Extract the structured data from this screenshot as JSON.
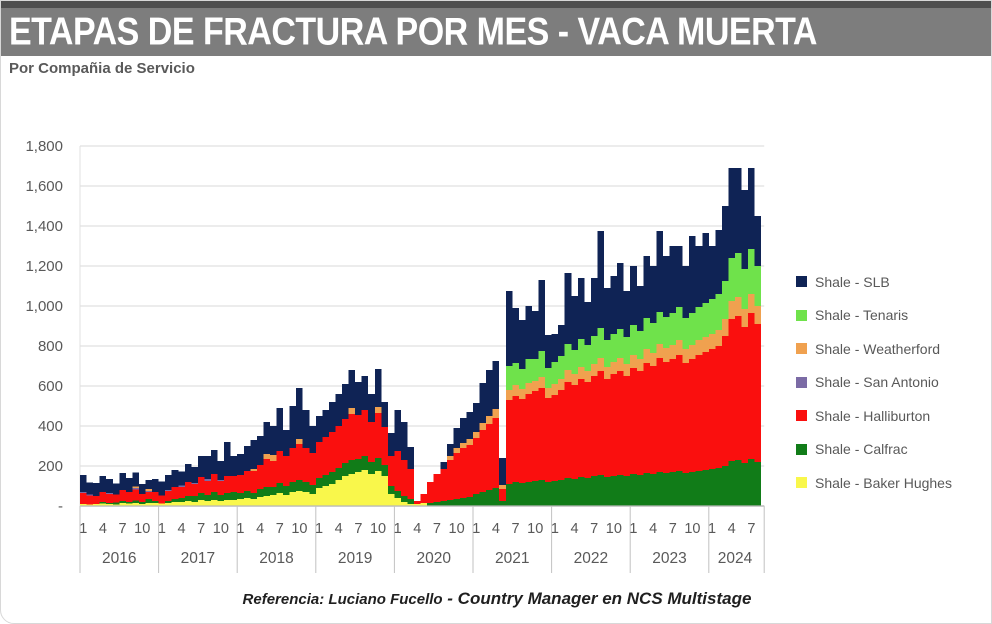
{
  "header": {
    "title": "ETAPAS DE FRACTURA POR MES -  VACA MUERTA",
    "subtitle": "Por Compañia de Servicio"
  },
  "footer": {
    "prefix": "Referencia:  Luciano Fucello",
    "suffix": " - Country Manager en NCS Multistage"
  },
  "chart_data": {
    "type": "bar",
    "stacked": true,
    "title": "ETAPAS DE FRACTURA POR MES - VACA MUERTA",
    "subtitle": "Por Compañia de Servicio",
    "ylabel": "",
    "xlabel": "",
    "ylim": [
      0,
      1800
    ],
    "ytick_step": 200,
    "grid": true,
    "legend_position": "right",
    "x": {
      "start": "2016-01",
      "end": "2024-08",
      "years": [
        2016,
        2017,
        2018,
        2019,
        2020,
        2021,
        2022,
        2023,
        2024
      ],
      "month_ticks": [
        1,
        4,
        7,
        10
      ],
      "months_in_final_year": 8
    },
    "series": [
      {
        "name": "Shale - Baker Hughes",
        "color": "#f9f74b",
        "values": [
          10,
          8,
          10,
          12,
          10,
          8,
          15,
          12,
          15,
          10,
          15,
          15,
          12,
          15,
          20,
          20,
          25,
          20,
          30,
          25,
          30,
          25,
          30,
          30,
          35,
          40,
          35,
          45,
          50,
          55,
          65,
          55,
          70,
          75,
          70,
          60,
          90,
          100,
          110,
          130,
          150,
          160,
          170,
          180,
          160,
          175,
          150,
          60,
          40,
          20,
          10,
          10,
          15,
          0,
          0,
          0,
          0,
          0,
          0,
          0,
          0,
          0,
          0,
          0,
          0,
          0,
          0,
          0,
          0,
          0,
          0,
          0,
          0,
          0,
          0,
          0,
          0,
          0,
          0,
          0,
          0,
          0,
          0,
          0,
          0,
          0,
          0,
          0,
          0,
          0,
          0,
          0,
          0,
          0,
          0,
          0,
          0,
          0,
          0,
          0,
          0,
          0,
          0,
          0
        ]
      },
      {
        "name": "Shale - Calfrac",
        "color": "#117c18",
        "values": [
          0,
          0,
          0,
          8,
          5,
          10,
          10,
          8,
          12,
          10,
          20,
          10,
          0,
          10,
          15,
          20,
          25,
          30,
          35,
          30,
          40,
          30,
          35,
          40,
          30,
          35,
          30,
          40,
          45,
          40,
          50,
          45,
          50,
          55,
          50,
          45,
          50,
          55,
          60,
          60,
          65,
          70,
          65,
          70,
          60,
          65,
          55,
          40,
          35,
          30,
          25,
          0,
          0,
          15,
          20,
          25,
          30,
          35,
          40,
          45,
          60,
          70,
          80,
          90,
          25,
          110,
          120,
          115,
          120,
          125,
          130,
          120,
          125,
          130,
          140,
          135,
          145,
          140,
          150,
          155,
          145,
          150,
          155,
          150,
          160,
          155,
          165,
          160,
          170,
          165,
          170,
          175,
          165,
          170,
          175,
          180,
          185,
          190,
          200,
          225,
          230,
          215,
          235,
          220
        ]
      },
      {
        "name": "Shale - Halliburton",
        "color": "#fa0f0e",
        "values": [
          55,
          45,
          40,
          50,
          45,
          40,
          55,
          50,
          55,
          40,
          35,
          45,
          40,
          50,
          60,
          55,
          70,
          60,
          80,
          70,
          90,
          70,
          85,
          80,
          90,
          100,
          110,
          120,
          140,
          130,
          160,
          150,
          170,
          180,
          170,
          160,
          180,
          190,
          200,
          210,
          220,
          230,
          220,
          230,
          200,
          225,
          190,
          150,
          200,
          180,
          150,
          15,
          45,
          105,
          140,
          160,
          200,
          230,
          250,
          260,
          280,
          310,
          330,
          350,
          60,
          420,
          430,
          420,
          440,
          450,
          460,
          420,
          430,
          450,
          480,
          470,
          490,
          480,
          500,
          520,
          490,
          510,
          520,
          500,
          530,
          520,
          550,
          540,
          570,
          555,
          565,
          580,
          550,
          565,
          580,
          590,
          600,
          610,
          650,
          710,
          720,
          680,
          730,
          690
        ]
      },
      {
        "name": "Shale - San Antonio",
        "color": "#7b6ba5",
        "values": [
          5,
          5,
          0,
          0,
          5,
          0,
          0,
          0,
          8,
          0,
          5,
          0,
          0,
          5,
          0,
          8,
          0,
          5,
          0,
          10,
          0,
          5,
          0,
          0,
          0,
          0,
          0,
          0,
          0,
          0,
          0,
          0,
          0,
          0,
          0,
          0,
          0,
          0,
          0,
          0,
          0,
          0,
          0,
          0,
          0,
          0,
          0,
          0,
          0,
          0,
          0,
          0,
          0,
          0,
          0,
          0,
          0,
          0,
          0,
          0,
          0,
          0,
          0,
          0,
          0,
          0,
          0,
          0,
          0,
          0,
          0,
          0,
          0,
          0,
          0,
          0,
          0,
          0,
          0,
          0,
          0,
          0,
          0,
          0,
          0,
          0,
          0,
          0,
          0,
          0,
          0,
          0,
          0,
          0,
          0,
          0,
          0,
          0,
          0,
          0,
          0,
          0,
          0,
          0
        ]
      },
      {
        "name": "Shale - Weatherford",
        "color": "#f0a14f",
        "values": [
          0,
          0,
          0,
          0,
          0,
          0,
          0,
          0,
          8,
          0,
          10,
          0,
          0,
          0,
          0,
          0,
          0,
          0,
          0,
          0,
          0,
          0,
          0,
          0,
          0,
          0,
          10,
          0,
          25,
          30,
          0,
          0,
          0,
          25,
          0,
          0,
          0,
          0,
          0,
          0,
          0,
          30,
          0,
          0,
          0,
          30,
          0,
          0,
          0,
          0,
          0,
          0,
          0,
          0,
          0,
          0,
          20,
          25,
          25,
          30,
          30,
          35,
          40,
          45,
          20,
          50,
          55,
          50,
          55,
          50,
          55,
          50,
          55,
          55,
          60,
          55,
          60,
          55,
          60,
          65,
          60,
          60,
          65,
          60,
          65,
          60,
          70,
          65,
          70,
          70,
          70,
          75,
          70,
          70,
          75,
          75,
          75,
          80,
          85,
          90,
          95,
          90,
          95,
          90
        ]
      },
      {
        "name": "Shale - Tenaris",
        "color": "#6fe24b",
        "values": [
          0,
          0,
          0,
          0,
          0,
          0,
          0,
          0,
          0,
          0,
          0,
          0,
          0,
          0,
          0,
          0,
          0,
          0,
          0,
          0,
          0,
          0,
          0,
          0,
          0,
          0,
          0,
          0,
          0,
          0,
          0,
          0,
          0,
          0,
          0,
          0,
          0,
          0,
          0,
          0,
          0,
          0,
          0,
          0,
          0,
          0,
          0,
          0,
          0,
          0,
          0,
          0,
          0,
          0,
          0,
          0,
          0,
          0,
          0,
          0,
          0,
          0,
          0,
          0,
          0,
          120,
          110,
          100,
          120,
          110,
          130,
          100,
          110,
          115,
          130,
          120,
          140,
          130,
          140,
          150,
          135,
          140,
          145,
          135,
          150,
          140,
          155,
          150,
          160,
          155,
          160,
          165,
          155,
          160,
          165,
          170,
          175,
          180,
          190,
          215,
          220,
          200,
          225,
          200
        ]
      },
      {
        "name": "Shale - SLB",
        "color": "#0f2355",
        "values": [
          85,
          60,
          65,
          80,
          70,
          55,
          85,
          70,
          70,
          50,
          45,
          65,
          70,
          75,
          85,
          70,
          90,
          80,
          105,
          115,
          120,
          95,
          170,
          100,
          105,
          125,
          145,
          145,
          160,
          145,
          215,
          130,
          210,
          255,
          190,
          135,
          130,
          135,
          150,
          160,
          175,
          190,
          165,
          170,
          140,
          190,
          125,
          115,
          205,
          190,
          110,
          0,
          0,
          0,
          0,
          35,
          60,
          100,
          125,
          135,
          145,
          200,
          230,
          240,
          135,
          375,
          275,
          245,
          265,
          240,
          355,
          165,
          140,
          155,
          355,
          270,
          305,
          215,
          290,
          485,
          260,
          290,
          330,
          230,
          295,
          225,
          310,
          285,
          405,
          305,
          335,
          305,
          260,
          385,
          305,
          350,
          265,
          320,
          375,
          450,
          425,
          395,
          405,
          250
        ]
      }
    ],
    "legend": [
      {
        "label": "Shale - SLB",
        "color": "#0f2355"
      },
      {
        "label": "Shale - Tenaris",
        "color": "#6fe24b"
      },
      {
        "label": "Shale - Weatherford",
        "color": "#f0a14f"
      },
      {
        "label": "Shale - San Antonio",
        "color": "#7b6ba5"
      },
      {
        "label": "Shale - Halliburton",
        "color": "#fa0f0e"
      },
      {
        "label": "Shale - Calfrac",
        "color": "#117c18"
      },
      {
        "label": "Shale - Baker Hughes",
        "color": "#f9f74b"
      }
    ]
  }
}
